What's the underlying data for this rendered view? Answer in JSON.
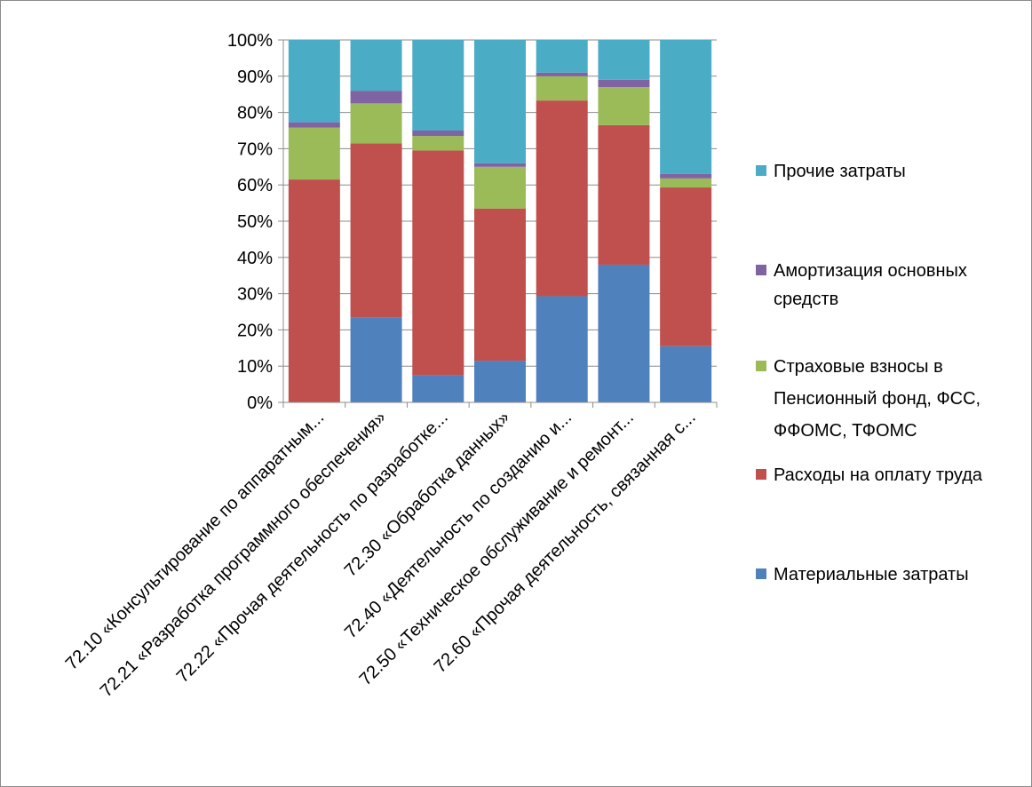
{
  "chart_data": {
    "type": "bar",
    "stacked": true,
    "normalized_percent": true,
    "grid": true,
    "legend_position": "right",
    "ylim": [
      0,
      100
    ],
    "y_ticks": [
      "0%",
      "10%",
      "20%",
      "30%",
      "40%",
      "50%",
      "60%",
      "70%",
      "80%",
      "90%",
      "100%"
    ],
    "categories": [
      "72.10 «Консультирование по аппаратным...",
      "72.21 «Разработка программного обеспечения»",
      "72.22 «Прочая деятельность по разработке...",
      "72.30 «Обработка данных»",
      "72.40 «Деятельность по созданию и...",
      "72.50 «Техническое обслуживание и ремонт...",
      "72.60 «Прочая деятельность, связанная с..."
    ],
    "series": [
      {
        "name": "Материальные затраты",
        "color": "#4F81BD",
        "values": [
          0,
          23.5,
          7.5,
          11.5,
          29.3,
          38,
          15.5
        ]
      },
      {
        "name": "Расходы на оплату труда",
        "color": "#C0504D",
        "values": [
          61.5,
          48,
          62,
          42,
          54,
          38.5,
          43.8
        ]
      },
      {
        "name": "Страховые взносы в Пенсионный фонд, ФСС, ФФОМС, ТФОМС",
        "color": "#9BBB59",
        "values": [
          14.3,
          11,
          4,
          11.5,
          6.7,
          10.5,
          2.5
        ]
      },
      {
        "name": "Амортизация основных средств",
        "color": "#8064A2",
        "values": [
          1.5,
          3.5,
          1.5,
          1,
          1,
          2,
          1.2
        ]
      },
      {
        "name": "Прочие затраты",
        "color": "#4BACC6",
        "values": [
          22.7,
          14,
          25,
          34,
          9,
          11,
          37
        ]
      }
    ],
    "legend_lines": [
      [
        "Прочие затраты"
      ],
      [
        "Амортизация основных",
        "средств"
      ],
      [
        "Страховые взносы в",
        "Пенсионный фонд, ФСС,",
        "ФФОМС, ТФОМС"
      ],
      [
        "Расходы на оплату труда"
      ],
      [
        "Материальные затраты"
      ]
    ]
  }
}
